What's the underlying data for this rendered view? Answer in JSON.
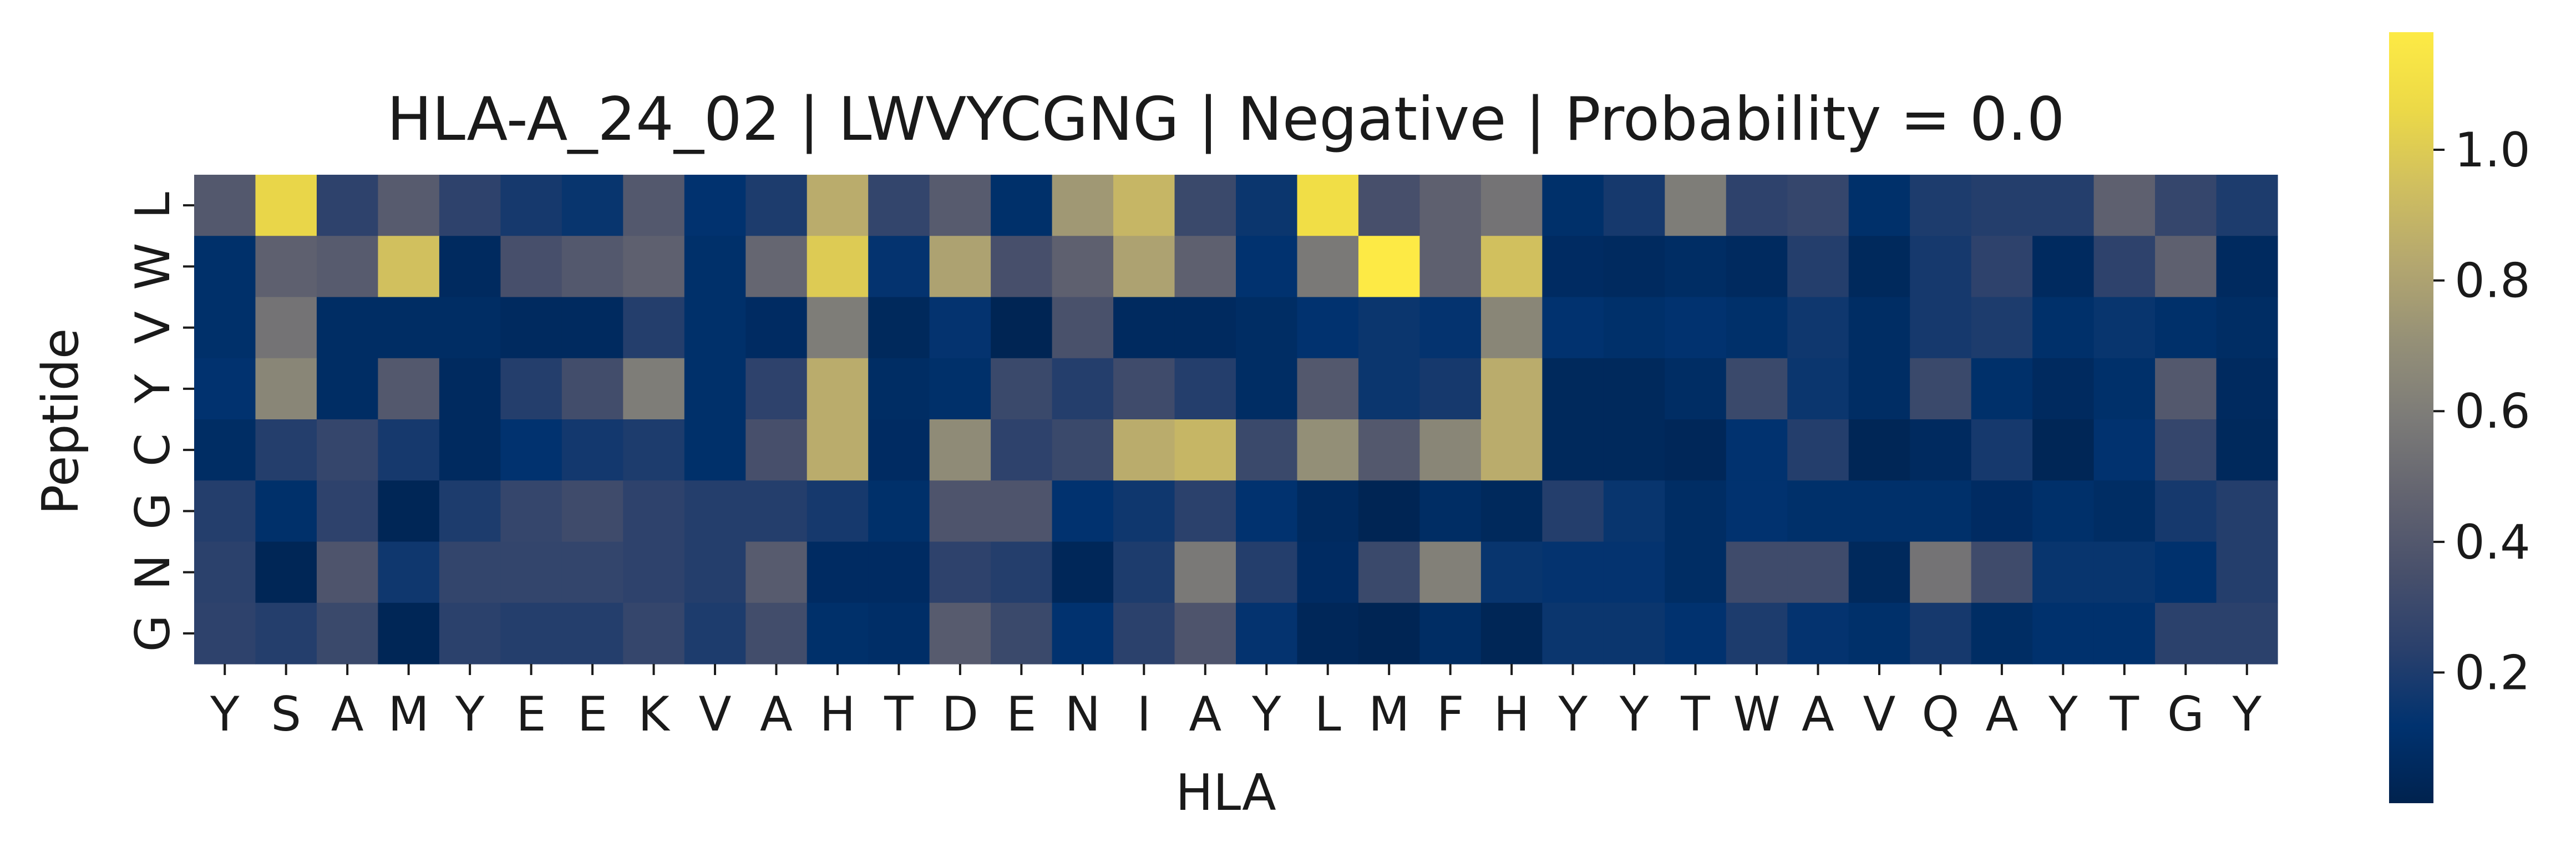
{
  "chart_data": {
    "type": "heatmap",
    "title": "HLA-A_24_02 | LWVYCGNG | Negative | Probability = 0.0",
    "xlabel": "HLA",
    "ylabel": "Peptide",
    "x_categories": [
      "Y",
      "S",
      "A",
      "M",
      "Y",
      "E",
      "E",
      "K",
      "V",
      "A",
      "H",
      "T",
      "D",
      "E",
      "N",
      "I",
      "A",
      "Y",
      "L",
      "M",
      "F",
      "H",
      "Y",
      "Y",
      "T",
      "W",
      "A",
      "V",
      "Q",
      "A",
      "Y",
      "T",
      "G",
      "Y"
    ],
    "y_categories": [
      "L",
      "W",
      "V",
      "Y",
      "C",
      "G",
      "N",
      "G"
    ],
    "colormap": "cividis",
    "vmin": 0.0,
    "vmax": 1.18,
    "colorbar_ticks": [
      "0.2",
      "0.4",
      "0.6",
      "0.8",
      "1.0"
    ],
    "colorbar_tick_values": [
      0.2,
      0.4,
      0.6,
      0.8,
      1.0
    ],
    "values": [
      [
        0.4,
        1.05,
        0.25,
        0.42,
        0.25,
        0.18,
        0.14,
        0.4,
        0.12,
        0.2,
        0.85,
        0.27,
        0.42,
        0.1,
        0.75,
        0.9,
        0.3,
        0.15,
        1.1,
        0.35,
        0.45,
        0.55,
        0.1,
        0.18,
        0.6,
        0.25,
        0.28,
        0.1,
        0.2,
        0.22,
        0.22,
        0.45,
        0.28,
        0.2
      ],
      [
        0.1,
        0.45,
        0.42,
        0.95,
        0.06,
        0.35,
        0.4,
        0.45,
        0.1,
        0.48,
        1.0,
        0.13,
        0.8,
        0.35,
        0.45,
        0.8,
        0.45,
        0.12,
        0.58,
        1.18,
        0.45,
        0.95,
        0.07,
        0.06,
        0.08,
        0.06,
        0.22,
        0.05,
        0.18,
        0.25,
        0.06,
        0.25,
        0.45,
        0.06
      ],
      [
        0.1,
        0.55,
        0.08,
        0.08,
        0.08,
        0.06,
        0.06,
        0.22,
        0.1,
        0.07,
        0.6,
        0.05,
        0.13,
        0.02,
        0.36,
        0.06,
        0.06,
        0.08,
        0.12,
        0.15,
        0.13,
        0.65,
        0.12,
        0.1,
        0.12,
        0.1,
        0.16,
        0.08,
        0.18,
        0.2,
        0.1,
        0.14,
        0.1,
        0.08
      ],
      [
        0.12,
        0.65,
        0.08,
        0.4,
        0.06,
        0.22,
        0.33,
        0.6,
        0.1,
        0.25,
        0.85,
        0.08,
        0.1,
        0.3,
        0.22,
        0.32,
        0.22,
        0.08,
        0.4,
        0.15,
        0.18,
        0.85,
        0.05,
        0.05,
        0.08,
        0.3,
        0.15,
        0.08,
        0.3,
        0.1,
        0.06,
        0.1,
        0.4,
        0.06
      ],
      [
        0.08,
        0.22,
        0.28,
        0.18,
        0.06,
        0.12,
        0.17,
        0.2,
        0.1,
        0.35,
        0.85,
        0.07,
        0.68,
        0.25,
        0.3,
        0.85,
        0.9,
        0.3,
        0.7,
        0.4,
        0.65,
        0.85,
        0.05,
        0.05,
        0.04,
        0.12,
        0.22,
        0.03,
        0.06,
        0.18,
        0.03,
        0.12,
        0.28,
        0.05
      ],
      [
        0.22,
        0.1,
        0.25,
        0.03,
        0.2,
        0.28,
        0.32,
        0.25,
        0.22,
        0.22,
        0.18,
        0.1,
        0.38,
        0.38,
        0.12,
        0.16,
        0.24,
        0.12,
        0.06,
        0.02,
        0.08,
        0.05,
        0.22,
        0.14,
        0.08,
        0.12,
        0.1,
        0.1,
        0.1,
        0.07,
        0.1,
        0.08,
        0.18,
        0.22
      ],
      [
        0.24,
        0.03,
        0.38,
        0.16,
        0.27,
        0.27,
        0.27,
        0.25,
        0.22,
        0.42,
        0.07,
        0.07,
        0.25,
        0.22,
        0.04,
        0.2,
        0.58,
        0.22,
        0.07,
        0.3,
        0.62,
        0.14,
        0.13,
        0.13,
        0.08,
        0.32,
        0.32,
        0.05,
        0.55,
        0.32,
        0.14,
        0.14,
        0.11,
        0.22
      ],
      [
        0.25,
        0.22,
        0.3,
        0.03,
        0.24,
        0.22,
        0.22,
        0.28,
        0.2,
        0.33,
        0.1,
        0.09,
        0.42,
        0.3,
        0.12,
        0.24,
        0.38,
        0.13,
        0.04,
        0.02,
        0.08,
        0.03,
        0.15,
        0.15,
        0.12,
        0.2,
        0.13,
        0.1,
        0.18,
        0.08,
        0.11,
        0.11,
        0.24,
        0.24
      ]
    ]
  }
}
